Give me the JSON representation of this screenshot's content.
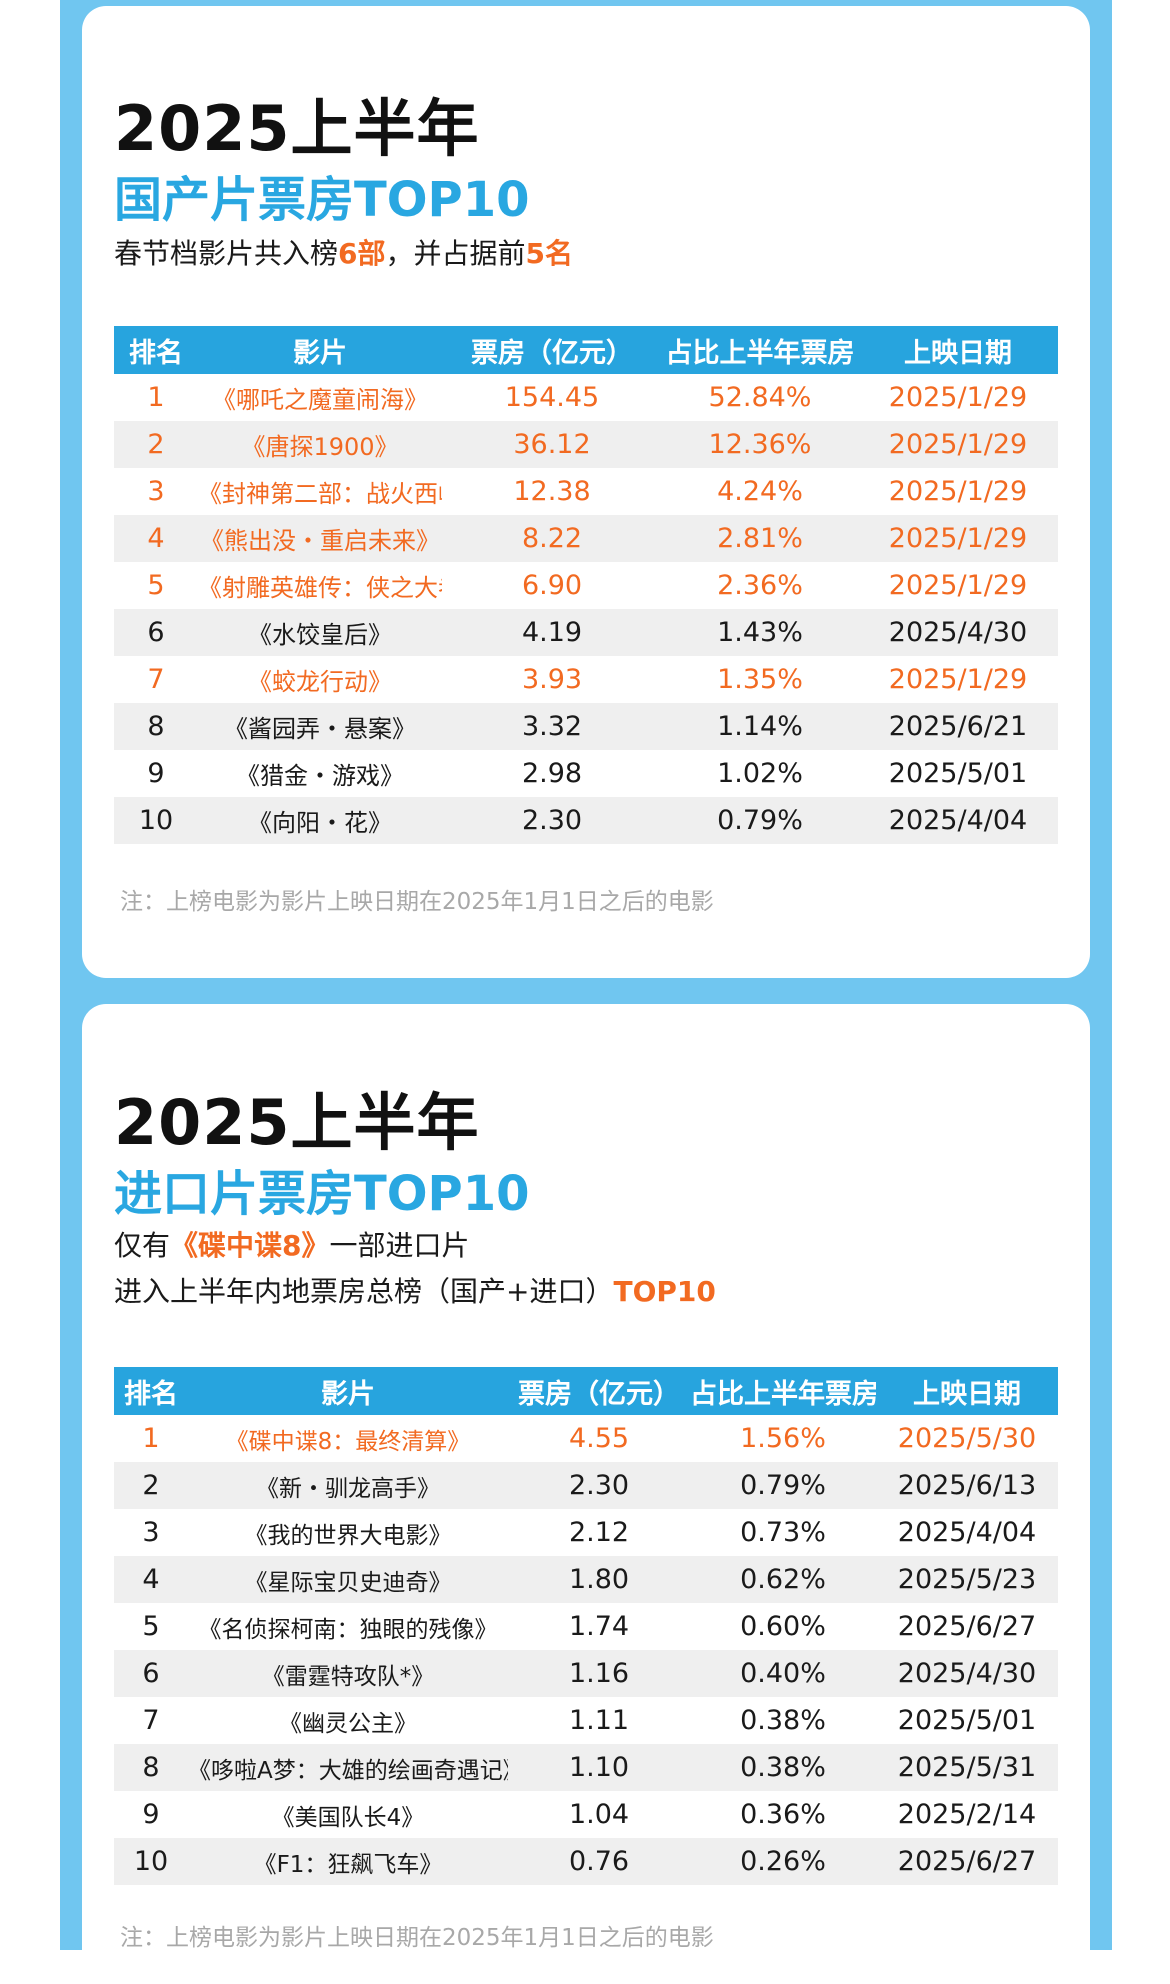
{
  "section1": {
    "year": "2025上半年",
    "subtitle": "国产片票房TOP10",
    "desc_pre": "春节档影片共入榜",
    "desc_hl1": "6部",
    "desc_mid": "，并占据前",
    "desc_hl2": "5名",
    "headers": [
      "排名",
      "影片",
      "票房（亿元）",
      "占比上半年票房",
      "上映日期"
    ],
    "rows": [
      {
        "rank": "1",
        "film": "《哪吒之魔童闹海》",
        "box": "154.45",
        "share": "52.84%",
        "date": "2025/1/29"
      },
      {
        "rank": "2",
        "film": "《唐探1900》",
        "box": "36.12",
        "share": "12.36%",
        "date": "2025/1/29"
      },
      {
        "rank": "3",
        "film": "《封神第二部：战火西岐》",
        "box": "12.38",
        "share": "4.24%",
        "date": "2025/1/29"
      },
      {
        "rank": "4",
        "film": "《熊出没・重启未来》",
        "box": "8.22",
        "share": "2.81%",
        "date": "2025/1/29"
      },
      {
        "rank": "5",
        "film": "《射雕英雄传：侠之大者》",
        "box": "6.90",
        "share": "2.36%",
        "date": "2025/1/29"
      },
      {
        "rank": "6",
        "film": "《水饺皇后》",
        "box": "4.19",
        "share": "1.43%",
        "date": "2025/4/30"
      },
      {
        "rank": "7",
        "film": "《蛟龙行动》",
        "box": "3.93",
        "share": "1.35%",
        "date": "2025/1/29"
      },
      {
        "rank": "8",
        "film": "《酱园弄・悬案》",
        "box": "3.32",
        "share": "1.14%",
        "date": "2025/6/21"
      },
      {
        "rank": "9",
        "film": "《猎金・游戏》",
        "box": "2.98",
        "share": "1.02%",
        "date": "2025/5/01"
      },
      {
        "rank": "10",
        "film": "《向阳・花》",
        "box": "2.30",
        "share": "0.79%",
        "date": "2025/4/04"
      }
    ],
    "note": "注：上榜电影为影片上映日期在2025年1月1日之后的电影"
  },
  "section2": {
    "year": "2025上半年",
    "subtitle": "进口片票房TOP10",
    "desc1_pre": "仅有",
    "desc1_hl": "《碟中谍8》",
    "desc1_post": "一部进口片",
    "desc2_pre": "进入上半年内地票房总榜（国产+进口）",
    "desc2_hl": "TOP10",
    "headers": [
      "排名",
      "影片",
      "票房（亿元）",
      "占比上半年票房",
      "上映日期"
    ],
    "rows": [
      {
        "rank": "1",
        "film": "《碟中谍8：最终清算》",
        "box": "4.55",
        "share": "1.56%",
        "date": "2025/5/30"
      },
      {
        "rank": "2",
        "film": "《新・驯龙高手》",
        "box": "2.30",
        "share": "0.79%",
        "date": "2025/6/13"
      },
      {
        "rank": "3",
        "film": "《我的世界大电影》",
        "box": "2.12",
        "share": "0.73%",
        "date": "2025/4/04"
      },
      {
        "rank": "4",
        "film": "《星际宝贝史迪奇》",
        "box": "1.80",
        "share": "0.62%",
        "date": "2025/5/23"
      },
      {
        "rank": "5",
        "film": "《名侦探柯南：独眼的残像》",
        "box": "1.74",
        "share": "0.60%",
        "date": "2025/6/27"
      },
      {
        "rank": "6",
        "film": "《雷霆特攻队*》",
        "box": "1.16",
        "share": "0.40%",
        "date": "2025/4/30"
      },
      {
        "rank": "7",
        "film": "《幽灵公主》",
        "box": "1.11",
        "share": "0.38%",
        "date": "2025/5/01"
      },
      {
        "rank": "8",
        "film": "《哆啦A梦：大雄的绘画奇遇记》",
        "box": "1.10",
        "share": "0.38%",
        "date": "2025/5/31"
      },
      {
        "rank": "9",
        "film": "《美国队长4》",
        "box": "1.04",
        "share": "0.36%",
        "date": "2025/2/14"
      },
      {
        "rank": "10",
        "film": "《F1：狂飙飞车》",
        "box": "0.76",
        "share": "0.26%",
        "date": "2025/6/27"
      }
    ],
    "note": "注：上榜电影为影片上映日期在2025年1月1日之后的电影"
  },
  "colors": {
    "accent_blue": "#27a4de",
    "highlight_orange": "#f26a21",
    "frame_blue": "#70c6f0"
  }
}
